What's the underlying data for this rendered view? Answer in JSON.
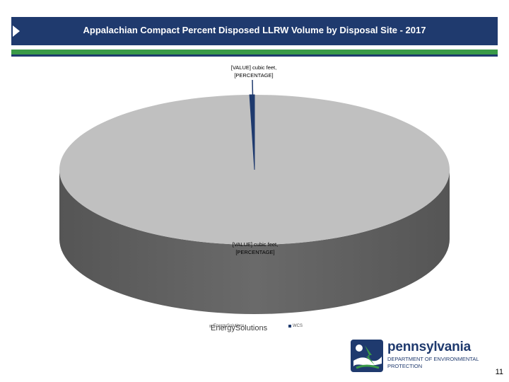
{
  "header": {
    "title": "Appalachian Compact Percent Disposed LLRW Volume by Disposal Site - 2017"
  },
  "chart_data": {
    "type": "pie",
    "style": "3d",
    "title": "Appalachian Compact Percent Disposed LLRW Volume by Disposal Site - 2017",
    "slices": [
      {
        "name": "EnergySolutions",
        "value": 99.6,
        "color": "#c0c0c0",
        "label": "[VALUE] cubic feet, [PERCENTAGE]"
      },
      {
        "name": "WCS",
        "value": 0.4,
        "color": "#1f3a6e",
        "label": "[VALUE] cubic feet, [PERCENTAGE]"
      }
    ],
    "legend": "bottom",
    "label_top_lines": [
      "[VALUE] cubic feet,",
      "[PERCENTAGE]"
    ],
    "label_bottom_lines": [
      "[VALUE] cubic feet,",
      "[PERCENTAGE]"
    ]
  },
  "legend": {
    "energy_label": "EnergySolutions",
    "energy_label_large": "EnergySolutions",
    "wcs_label": "WCS"
  },
  "logo": {
    "name": "pennsylvania",
    "dept_line1": "DEPARTMENT OF ENVIRONMENTAL",
    "dept_line2": "PROTECTION"
  },
  "page_number": "11"
}
